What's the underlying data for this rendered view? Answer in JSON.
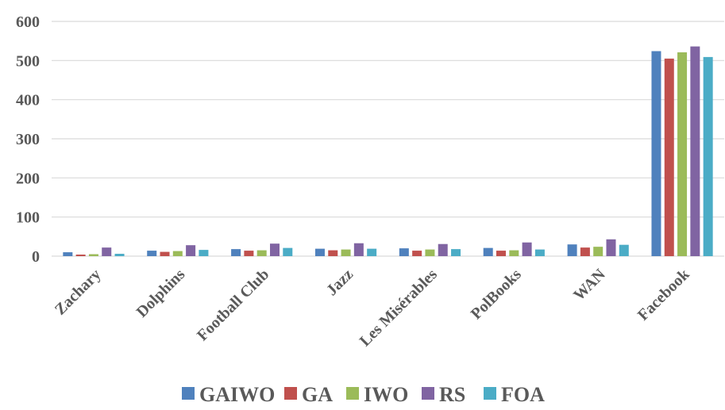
{
  "chart_data": {
    "type": "bar",
    "title": "",
    "xlabel": "",
    "ylabel": "",
    "ylim": [
      0,
      600
    ],
    "yticks": [
      0,
      100,
      200,
      300,
      400,
      500,
      600
    ],
    "grid": true,
    "legend_position": "bottom",
    "categories": [
      "Zachary",
      "Dolphins",
      "Football Club",
      "Jazz",
      "Les Misérables",
      "PolBooks",
      "WAN",
      "Facebook"
    ],
    "series": [
      {
        "name": "GAIWO",
        "color": "#4f81bd",
        "values": [
          10,
          14,
          18,
          19,
          20,
          21,
          30,
          524
        ]
      },
      {
        "name": "GA",
        "color": "#c0504d",
        "values": [
          4,
          11,
          14,
          15,
          14,
          14,
          22,
          505
        ]
      },
      {
        "name": "IWO",
        "color": "#9bbb59",
        "values": [
          5,
          13,
          15,
          17,
          17,
          15,
          24,
          521
        ]
      },
      {
        "name": "RS",
        "color": "#8064a2",
        "values": [
          22,
          28,
          32,
          33,
          31,
          35,
          43,
          536
        ]
      },
      {
        "name": "FOA",
        "color": "#4bacc6",
        "values": [
          6,
          16,
          21,
          19,
          18,
          17,
          29,
          509
        ]
      }
    ]
  }
}
